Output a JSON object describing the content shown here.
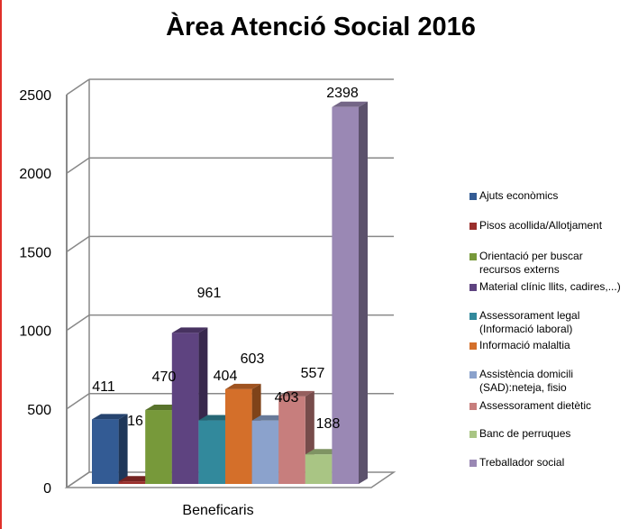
{
  "chart_data": {
    "type": "bar",
    "title": "Àrea Atenció Social 2016",
    "xlabel": "Beneficaris",
    "ylabel": "",
    "categories": [
      "Beneficaris"
    ],
    "ylim": [
      0,
      2500
    ],
    "yticks": [
      "0",
      "500",
      "1000",
      "1500",
      "2000",
      "2500"
    ],
    "grid": true,
    "three_d": true,
    "legend_position": "right",
    "series": [
      {
        "name": "Ajuts econòmics",
        "value": 411,
        "label": "411",
        "color": "#335b94"
      },
      {
        "name": "Pisos acollida/Allotjament",
        "value": 16,
        "label": "16",
        "color": "#9a2f2c"
      },
      {
        "name": "Orientació per buscar recursos externs",
        "value": 470,
        "label": "470",
        "color": "#77993a"
      },
      {
        "name": "Material clínic llits, cadires,...)",
        "value": 961,
        "label": "961",
        "color": "#5e4380"
      },
      {
        "name": "Assessorament legal (Informació laboral)",
        "value": 404,
        "label": "404",
        "color": "#32899c"
      },
      {
        "name": "Informació malaltia",
        "value": 603,
        "label": "603",
        "color": "#d46f2a"
      },
      {
        "name": "Assistència domicili (SAD):neteja, fisio",
        "value": 403,
        "label": "403",
        "color": "#8ba2cc"
      },
      {
        "name": "Assessorament dietètic",
        "value": 557,
        "label": "557",
        "color": "#c77e7d"
      },
      {
        "name": "Banc de perruques",
        "value": 188,
        "label": "188",
        "color": "#a9c584"
      },
      {
        "name": "Treballador social",
        "value": 2398,
        "label": "2398",
        "color": "#9a88b4"
      }
    ]
  }
}
